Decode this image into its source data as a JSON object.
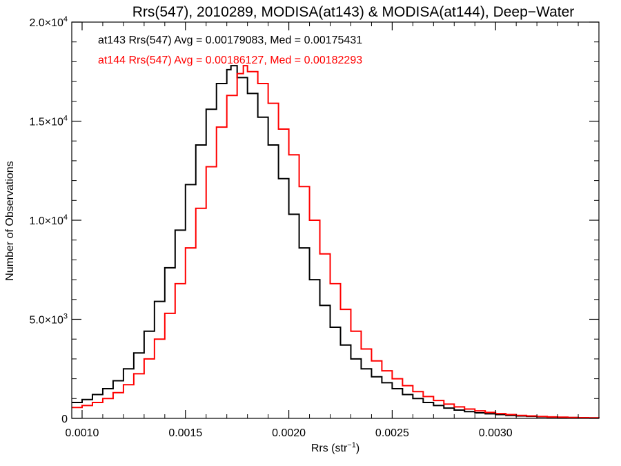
{
  "chart_data": {
    "type": "histogram",
    "title": "Rrs(547), 2010289, MODISA(at143) & MODISA(at144), Deep−Water",
    "xlabel_base": "Rrs (str",
    "xlabel_sup": "−1",
    "xlabel_end": ")",
    "ylabel": "Number of Observations",
    "xlim": [
      0.00095,
      0.0035
    ],
    "ylim": [
      0,
      20000
    ],
    "x_ticks": [
      {
        "value": 0.001,
        "label": "0.0010"
      },
      {
        "value": 0.0015,
        "label": "0.0015"
      },
      {
        "value": 0.002,
        "label": "0.0020"
      },
      {
        "value": 0.0025,
        "label": "0.0025"
      },
      {
        "value": 0.003,
        "label": "0.0030"
      }
    ],
    "y_ticks": [
      {
        "value": 0,
        "mant": "0",
        "exp": ""
      },
      {
        "value": 5000,
        "mant": "5.0×10",
        "exp": "3"
      },
      {
        "value": 10000,
        "mant": "1.0×10",
        "exp": "4"
      },
      {
        "value": 15000,
        "mant": "1.5×10",
        "exp": "4"
      },
      {
        "value": 20000,
        "mant": "2.0×10",
        "exp": "4"
      }
    ],
    "annotations": [
      {
        "text": "at143 Rrs(547) Avg = 0.00179083, Med = 0.00175431",
        "color": "#000000"
      },
      {
        "text": "at144 Rrs(547) Avg = 0.00186127, Med = 0.00182293",
        "color": "#ff0000"
      }
    ],
    "series": [
      {
        "color": "#000000",
        "points": [
          [
            0.00095,
            800
          ],
          [
            0.001,
            950
          ],
          [
            0.00105,
            1200
          ],
          [
            0.0011,
            1500
          ],
          [
            0.00115,
            1900
          ],
          [
            0.0012,
            2500
          ],
          [
            0.00125,
            3300
          ],
          [
            0.0013,
            4400
          ],
          [
            0.00135,
            5900
          ],
          [
            0.0014,
            7600
          ],
          [
            0.00145,
            9500
          ],
          [
            0.0015,
            11800
          ],
          [
            0.00155,
            13800
          ],
          [
            0.0016,
            15600
          ],
          [
            0.00165,
            16900
          ],
          [
            0.0017,
            17600
          ],
          [
            0.00172,
            17800
          ],
          [
            0.00175,
            17200
          ],
          [
            0.0018,
            16400
          ],
          [
            0.00185,
            15200
          ],
          [
            0.0019,
            13800
          ],
          [
            0.00195,
            12100
          ],
          [
            0.002,
            10300
          ],
          [
            0.00205,
            8600
          ],
          [
            0.0021,
            7000
          ],
          [
            0.00215,
            5700
          ],
          [
            0.0022,
            4600
          ],
          [
            0.00225,
            3700
          ],
          [
            0.0023,
            3000
          ],
          [
            0.00235,
            2500
          ],
          [
            0.0024,
            2100
          ],
          [
            0.00245,
            1800
          ],
          [
            0.0025,
            1500
          ],
          [
            0.00255,
            1200
          ],
          [
            0.0026,
            1000
          ],
          [
            0.00265,
            800
          ],
          [
            0.0027,
            650
          ],
          [
            0.00275,
            520
          ],
          [
            0.0028,
            420
          ],
          [
            0.00285,
            340
          ],
          [
            0.0029,
            280
          ],
          [
            0.00295,
            230
          ],
          [
            0.003,
            190
          ],
          [
            0.00305,
            150
          ],
          [
            0.0031,
            120
          ],
          [
            0.00315,
            100
          ],
          [
            0.0032,
            80
          ],
          [
            0.00325,
            60
          ],
          [
            0.0033,
            50
          ],
          [
            0.00335,
            40
          ],
          [
            0.0034,
            30
          ],
          [
            0.00345,
            20
          ],
          [
            0.0035,
            15
          ]
        ]
      },
      {
        "color": "#ff0000",
        "points": [
          [
            0.00095,
            550
          ],
          [
            0.001,
            650
          ],
          [
            0.00105,
            800
          ],
          [
            0.0011,
            1000
          ],
          [
            0.00115,
            1300
          ],
          [
            0.0012,
            1700
          ],
          [
            0.00125,
            2250
          ],
          [
            0.0013,
            3000
          ],
          [
            0.00135,
            4000
          ],
          [
            0.0014,
            5300
          ],
          [
            0.00145,
            6800
          ],
          [
            0.0015,
            8600
          ],
          [
            0.00155,
            10600
          ],
          [
            0.0016,
            12700
          ],
          [
            0.00165,
            14700
          ],
          [
            0.0017,
            16300
          ],
          [
            0.00175,
            17400
          ],
          [
            0.00178,
            17800
          ],
          [
            0.0018,
            17500
          ],
          [
            0.00185,
            16900
          ],
          [
            0.0019,
            15900
          ],
          [
            0.00195,
            14600
          ],
          [
            0.002,
            13300
          ],
          [
            0.00205,
            11700
          ],
          [
            0.0021,
            10000
          ],
          [
            0.00215,
            8300
          ],
          [
            0.0022,
            6800
          ],
          [
            0.00225,
            5500
          ],
          [
            0.0023,
            4400
          ],
          [
            0.00235,
            3500
          ],
          [
            0.0024,
            2900
          ],
          [
            0.00245,
            2400
          ],
          [
            0.0025,
            2000
          ],
          [
            0.00255,
            1650
          ],
          [
            0.0026,
            1350
          ],
          [
            0.00265,
            1100
          ],
          [
            0.0027,
            900
          ],
          [
            0.00275,
            720
          ],
          [
            0.0028,
            580
          ],
          [
            0.00285,
            470
          ],
          [
            0.0029,
            380
          ],
          [
            0.00295,
            300
          ],
          [
            0.003,
            240
          ],
          [
            0.00305,
            190
          ],
          [
            0.0031,
            150
          ],
          [
            0.00315,
            120
          ],
          [
            0.0032,
            95
          ],
          [
            0.00325,
            75
          ],
          [
            0.0033,
            60
          ],
          [
            0.00335,
            45
          ],
          [
            0.0034,
            35
          ],
          [
            0.00345,
            25
          ],
          [
            0.0035,
            18
          ]
        ]
      }
    ]
  }
}
